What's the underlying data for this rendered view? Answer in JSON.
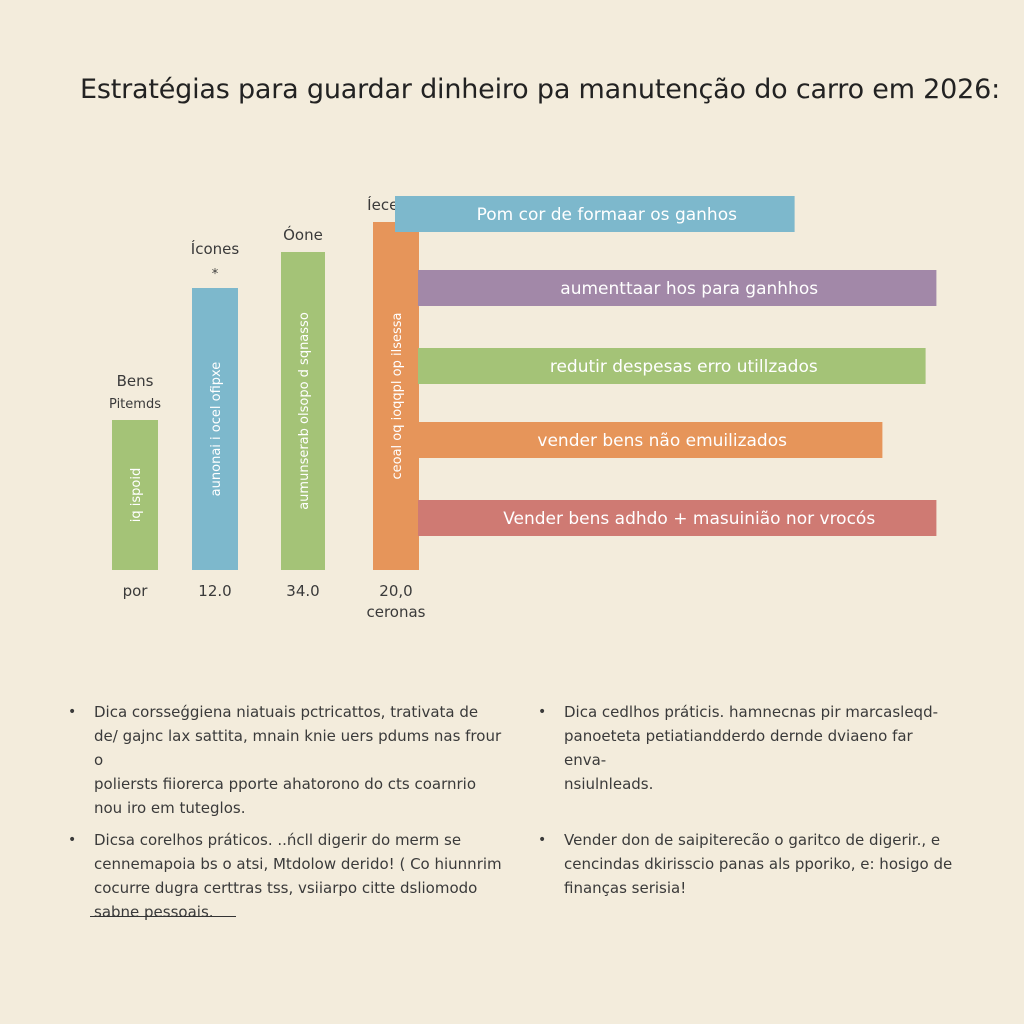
{
  "title": "Estratégias para guardar dinheiro pa manutenção do carro em 2026:",
  "chart_data": {
    "type": "bar",
    "vertical": {
      "categories": [
        "por",
        "12.0",
        "34.0",
        "20,0"
      ],
      "values": [
        12.5,
        23.5,
        26.5,
        29.0
      ],
      "ylim": [
        0,
        30
      ],
      "top_labels": [
        [
          "Bens",
          "Pitemds"
        ],
        [
          "Ícones",
          "*"
        ],
        [
          "Óone"
        ],
        [
          "Íecenas"
        ]
      ],
      "bottom_sublabels": [
        "",
        "",
        "",
        "ceronas"
      ],
      "bar_texts": [
        "iq ispoid",
        "aunonai i ocel ofipxe",
        "aumunserab olsopo d sqnasso",
        "ceoal oq ioqqpl op ilsessa"
      ],
      "colors": [
        "#a4c377",
        "#7db8cc",
        "#a4c377",
        "#e6955a"
      ]
    },
    "horizontal": {
      "labels": [
        "Pom cor de formaar os ganhos",
        "aumenttaar hos  para ganhhos",
        "redutir despesas erro utillzados",
        "vender bens não emuilizados",
        "Vender bens adhdo + masuinião nor vrocós"
      ],
      "values": [
        0.74,
        0.96,
        0.94,
        0.86,
        0.96
      ],
      "colors": [
        "#7db8cc",
        "#a288a8",
        "#a4c377",
        "#e6955a",
        "#cf7a73"
      ]
    }
  },
  "tips": [
    {
      "bullet": "•",
      "text": "Dica corsseǵgiena niatuais pctricattos, trativata de\nde/ gajnc lax sattita, mnain knie uers pdums nas frour o\npoliersts fiiorerca pporte ahatorono do cts coarnrio\nnou iro em tuteglos."
    },
    {
      "bullet": "•",
      "text": "Dica cedlhos práticis. hamnecnas pir marcasleqd-\npanoeteta petiatiandderdo dernde dviaeno far enva-\nnsiulnleads."
    },
    {
      "bullet": "•",
      "text": "Dicsa corelhos práticos. ..ńcll digerir do merm se\ncennemapoia bs o atsi, Mtdolow derido! ( Co hiunnrim\ncocurre dugra certtras tss, vsiiarpo citte dsliomodo\nsabne pessoais."
    },
    {
      "bullet": "•",
      "text": "Vender don de saipiterecão o garitco de digerir., e\ncencindas dkirisscio panas als pporiko, e: hosigo de\nfinanças serisia!"
    }
  ]
}
